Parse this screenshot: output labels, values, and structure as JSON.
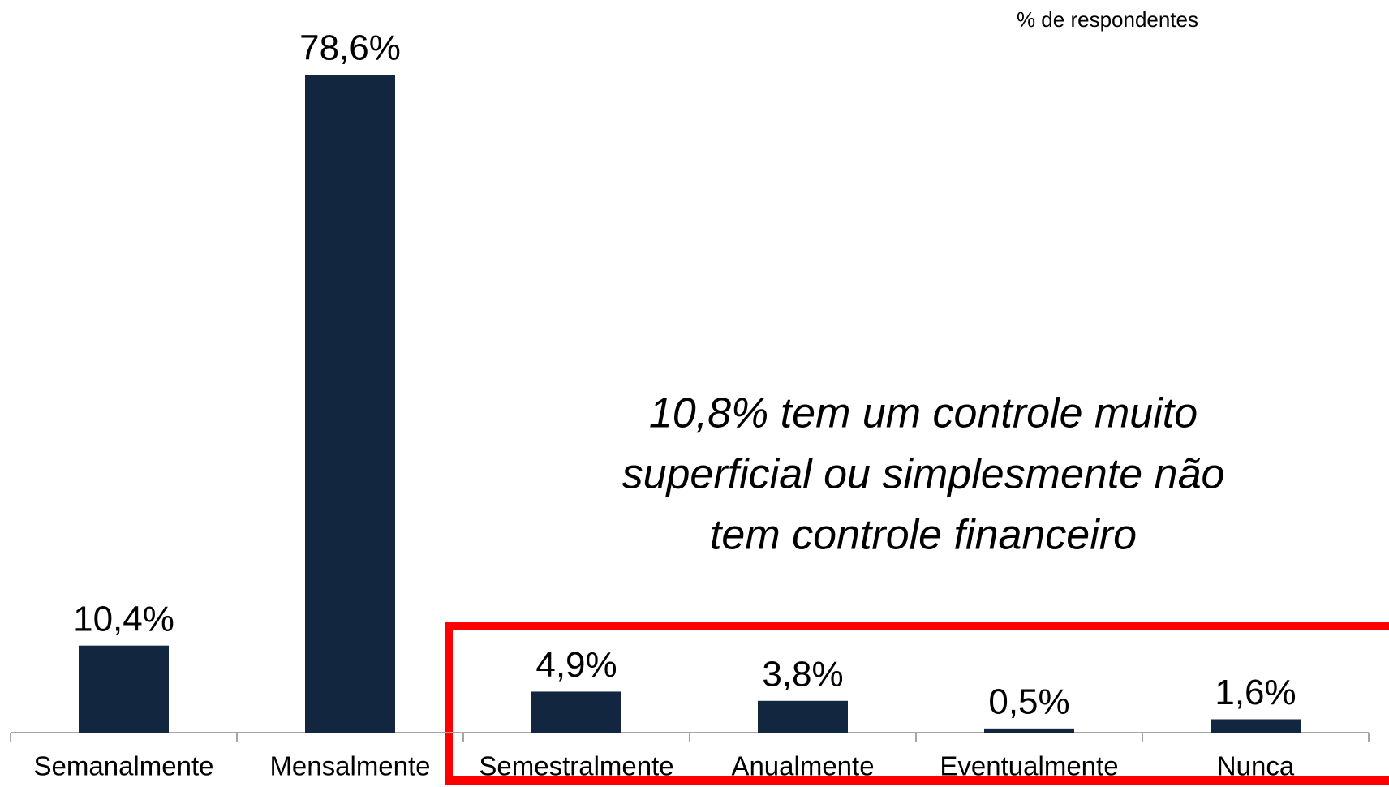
{
  "chart_data": {
    "type": "bar",
    "subtitle": "% de respondentes",
    "categories": [
      "Semanalmente",
      "Mensalmente",
      "Semestralmente",
      "Anualmente",
      "Eventualmente",
      "Nunca"
    ],
    "values": [
      10.4,
      78.6,
      4.9,
      3.8,
      0.5,
      1.6
    ],
    "value_labels": [
      "10,4%",
      "78,6%",
      "4,9%",
      "3,8%",
      "0,5%",
      "1,6%"
    ],
    "color": "#12263f",
    "annotation": [
      "10,8% tem um controle muito",
      "superficial ou simplesmente não",
      "tem controle financeiro"
    ]
  }
}
